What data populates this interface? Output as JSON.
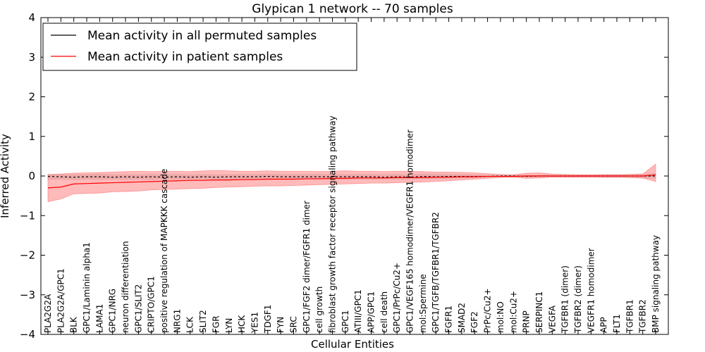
{
  "chart_data": {
    "type": "line",
    "title": "Glypican 1 network -- 70 samples",
    "xlabel": "Cellular Entities",
    "ylabel": "Inferred Activity",
    "ylim": [
      -4,
      4
    ],
    "yticks": [
      -4,
      -3,
      -2,
      -1,
      0,
      1,
      2,
      3,
      4
    ],
    "ytick_labels": [
      "−4",
      "−3",
      "−2",
      "−1",
      "0",
      "1",
      "2",
      "3",
      "4"
    ],
    "grid": false,
    "legend_position": "top-left",
    "categories": [
      "PLA2G2A",
      "PLA2G2A/GPC1",
      "BLK",
      "GPC1/Laminin alpha1",
      "LAMA1",
      "GPC1/NRG",
      "neuron differentiation",
      "GPC1/SLIT2",
      "CRIPTO/GPC1",
      "positive regulation of MAPKKK cascade",
      "NRG1",
      "LCK",
      "SLIT2",
      "FGR",
      "LYN",
      "HCK",
      "YES1",
      "TDGF1",
      "FYN",
      "SRC",
      "GPC1/FGF2 dimer/FGFR1 dimer",
      "cell growth",
      "fibroblast growth factor receptor signaling pathway",
      "GPC1",
      "ATIII/GPC1",
      "APP/GPC1",
      "cell death",
      "GPC1/PrPc/Cu2+",
      "GPC1/VEGF165 homodimer/VEGFR1 homodimer",
      "mol:Spermine",
      "GPC1/TGFB/TGFBR1/TGFBR2",
      "FGFR1",
      "SMAD2",
      "FGF2",
      "PrPc/Cu2+",
      "mol:NO",
      "mol:Cu2+",
      "PRNP",
      "SERPINC1",
      "VEGFA",
      "TGFBR1 (dimer)",
      "TGFBR2 (dimer)",
      "VEGFR1 homodimer",
      "APP",
      "FLT1",
      "TGFBR1",
      "TGFBR2",
      "BMP signaling pathway"
    ],
    "series": [
      {
        "name": "Mean activity in all permuted samples",
        "color": "#000000",
        "band_color": "#c8c8c8",
        "values": [
          -0.01,
          -0.02,
          -0.03,
          -0.02,
          -0.02,
          -0.03,
          -0.02,
          -0.03,
          -0.02,
          -0.03,
          -0.02,
          -0.03,
          -0.02,
          -0.03,
          -0.02,
          -0.02,
          -0.02,
          -0.01,
          -0.02,
          -0.02,
          -0.02,
          -0.02,
          -0.02,
          -0.02,
          -0.02,
          -0.02,
          -0.03,
          -0.02,
          -0.03,
          -0.01,
          -0.02,
          -0.01,
          -0.01,
          -0.01,
          -0.01,
          0.0,
          0.0,
          -0.01,
          0.0,
          0.0,
          0.0,
          0.0,
          0.0,
          0.0,
          0.0,
          0.0,
          0.0,
          0.0
        ],
        "lower": [
          -0.09,
          -0.08,
          -0.09,
          -0.08,
          -0.09,
          -0.08,
          -0.09,
          -0.08,
          -0.09,
          -0.08,
          -0.08,
          -0.08,
          -0.08,
          -0.08,
          -0.08,
          -0.08,
          -0.08,
          -0.07,
          -0.08,
          -0.08,
          -0.08,
          -0.08,
          -0.08,
          -0.08,
          -0.08,
          -0.08,
          -0.08,
          -0.08,
          -0.08,
          -0.07,
          -0.07,
          -0.06,
          -0.05,
          -0.04,
          -0.03,
          -0.02,
          -0.02,
          -0.03,
          -0.02,
          -0.02,
          -0.03,
          -0.03,
          -0.03,
          -0.04,
          -0.04,
          -0.04,
          -0.05,
          -0.06
        ],
        "upper": [
          0.05,
          0.04,
          0.03,
          0.04,
          0.05,
          0.03,
          0.04,
          0.03,
          0.04,
          0.03,
          0.04,
          0.03,
          0.04,
          0.03,
          0.04,
          0.04,
          0.04,
          0.05,
          0.04,
          0.04,
          0.04,
          0.04,
          0.04,
          0.04,
          0.04,
          0.04,
          0.03,
          0.04,
          0.03,
          0.05,
          0.04,
          0.04,
          0.03,
          0.03,
          0.02,
          0.02,
          0.02,
          0.02,
          0.02,
          0.02,
          0.03,
          0.03,
          0.03,
          0.04,
          0.04,
          0.04,
          0.05,
          0.06
        ]
      },
      {
        "name": "Mean activity in patient samples",
        "color": "#ff0000",
        "band_color": "#ff6666",
        "values": [
          -0.3,
          -0.28,
          -0.2,
          -0.19,
          -0.18,
          -0.17,
          -0.16,
          -0.15,
          -0.14,
          -0.13,
          -0.12,
          -0.11,
          -0.11,
          -0.1,
          -0.1,
          -0.09,
          -0.09,
          -0.08,
          -0.08,
          -0.08,
          -0.07,
          -0.07,
          -0.06,
          -0.06,
          -0.05,
          -0.05,
          -0.05,
          -0.04,
          -0.04,
          -0.04,
          -0.03,
          -0.03,
          -0.02,
          -0.02,
          -0.01,
          -0.01,
          -0.01,
          0.0,
          0.0,
          0.0,
          0.0,
          0.0,
          0.0,
          0.0,
          0.0,
          0.0,
          0.0,
          0.03
        ],
        "lower": [
          -0.65,
          -0.58,
          -0.45,
          -0.44,
          -0.43,
          -0.4,
          -0.39,
          -0.38,
          -0.35,
          -0.34,
          -0.33,
          -0.32,
          -0.31,
          -0.29,
          -0.28,
          -0.27,
          -0.26,
          -0.25,
          -0.25,
          -0.24,
          -0.23,
          -0.22,
          -0.21,
          -0.2,
          -0.19,
          -0.18,
          -0.18,
          -0.17,
          -0.16,
          -0.15,
          -0.14,
          -0.12,
          -0.1,
          -0.08,
          -0.06,
          -0.04,
          -0.03,
          -0.06,
          -0.05,
          -0.03,
          -0.03,
          -0.03,
          -0.03,
          -0.03,
          -0.03,
          -0.04,
          -0.05,
          -0.14
        ],
        "upper": [
          0.03,
          0.05,
          0.07,
          0.08,
          0.09,
          0.1,
          0.11,
          0.12,
          0.11,
          0.12,
          0.12,
          0.11,
          0.13,
          0.14,
          0.13,
          0.12,
          0.12,
          0.13,
          0.12,
          0.12,
          0.12,
          0.11,
          0.12,
          0.13,
          0.12,
          0.12,
          0.11,
          0.12,
          0.12,
          0.11,
          0.1,
          0.1,
          0.09,
          0.08,
          0.06,
          0.04,
          0.03,
          0.07,
          0.08,
          0.05,
          0.04,
          0.03,
          0.03,
          0.03,
          0.03,
          0.04,
          0.05,
          0.3
        ]
      }
    ]
  }
}
